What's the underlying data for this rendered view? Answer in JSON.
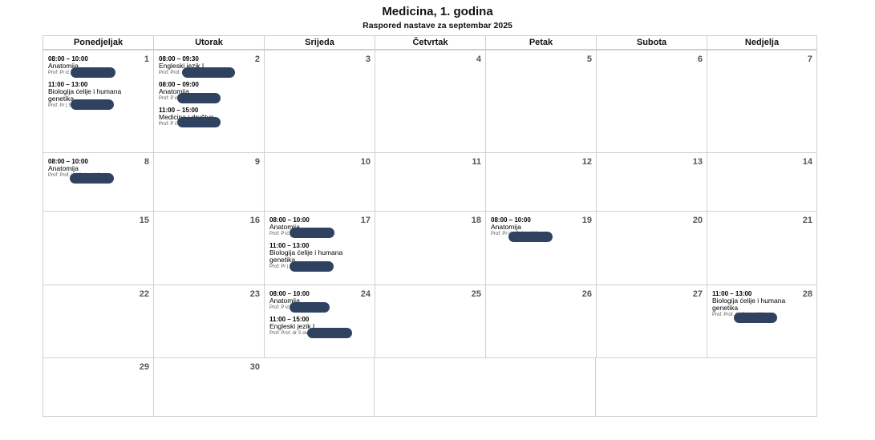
{
  "title": "Medicina, 1. godina",
  "subtitle": "Raspored nastave za septembar 2025",
  "weekdays": [
    "Ponedjeljak",
    "Utorak",
    "Srijeda",
    "Četvrtak",
    "Petak",
    "Subota",
    "Nedjelja"
  ],
  "days": {
    "d1": {
      "num": "1",
      "events": [
        {
          "time": "08:00 – 10:00",
          "subject": "Anatomija",
          "prof": "Prof: Pr              ić | Soba: 110"
        },
        {
          "time": "11:00 – 13:00",
          "subject": "Biologija ćelije i humana genetika",
          "prof": "Prof: Pr              | Soba: 111"
        }
      ]
    },
    "d2": {
      "num": "2",
      "events": [
        {
          "time": "08:00 – 09:30",
          "subject": "Engleski jezik I",
          "prof": "Prof: Prof. dr              dović | Soba: 312"
        },
        {
          "time": "08:00 – 09:00",
          "subject": "Anatomija",
          "prof": "Prof: P              ić | Soba: 110"
        },
        {
          "time": "11:00 – 15:00",
          "subject": "Medicina i društvo",
          "prof": "Prof: P              ć | Soba: 110"
        }
      ]
    },
    "d3": {
      "num": "3"
    },
    "d4": {
      "num": "4"
    },
    "d5": {
      "num": "5"
    },
    "d6": {
      "num": "6"
    },
    "d7": {
      "num": "7"
    },
    "d8": {
      "num": "8",
      "events": [
        {
          "time": "08:00 – 10:00",
          "subject": "Anatomija",
          "prof": "Prof: Prof.              ić | Soba: 110"
        }
      ]
    },
    "d9": {
      "num": "9"
    },
    "d10": {
      "num": "10"
    },
    "d11": {
      "num": "11"
    },
    "d12": {
      "num": "12"
    },
    "d13": {
      "num": "13"
    },
    "d14": {
      "num": "14"
    },
    "d15": {
      "num": "15"
    },
    "d16": {
      "num": "16"
    },
    "d17": {
      "num": "17",
      "events": [
        {
          "time": "08:00 – 10:00",
          "subject": "Anatomija",
          "prof": "Prof: P              ić | Soba: 110"
        },
        {
          "time": "11:00 – 13:00",
          "subject": "Biologija ćelije i humana genetika",
          "prof": "Prof: Pr              | Soba: 111"
        }
      ]
    },
    "d18": {
      "num": "18"
    },
    "d19": {
      "num": "19",
      "events": [
        {
          "time": "08:00 – 10:00",
          "subject": "Anatomija",
          "prof": "Prof: Pr              ić | Soba: 110"
        }
      ]
    },
    "d20": {
      "num": "20"
    },
    "d21": {
      "num": "21"
    },
    "d22": {
      "num": "22"
    },
    "d23": {
      "num": "23"
    },
    "d24": {
      "num": "24",
      "events": [
        {
          "time": "08:00 – 10:00",
          "subject": "Anatomija",
          "prof": "Prof: P              ić | Soba: 110"
        },
        {
          "time": "11:00 – 15:00",
          "subject": "Engleski jezik I",
          "prof": "Prof: Prof. dr S              ović | Soba: 312"
        }
      ]
    },
    "d25": {
      "num": "25"
    },
    "d26": {
      "num": "26"
    },
    "d27": {
      "num": "27"
    },
    "d28": {
      "num": "28",
      "events": [
        {
          "time": "11:00 – 13:00",
          "subject": "Biologija ćelije i humana genetika",
          "prof": "Prof: Prof.              ć | Soba: 111"
        }
      ]
    },
    "d29": {
      "num": "29"
    },
    "d30": {
      "num": "30"
    }
  }
}
